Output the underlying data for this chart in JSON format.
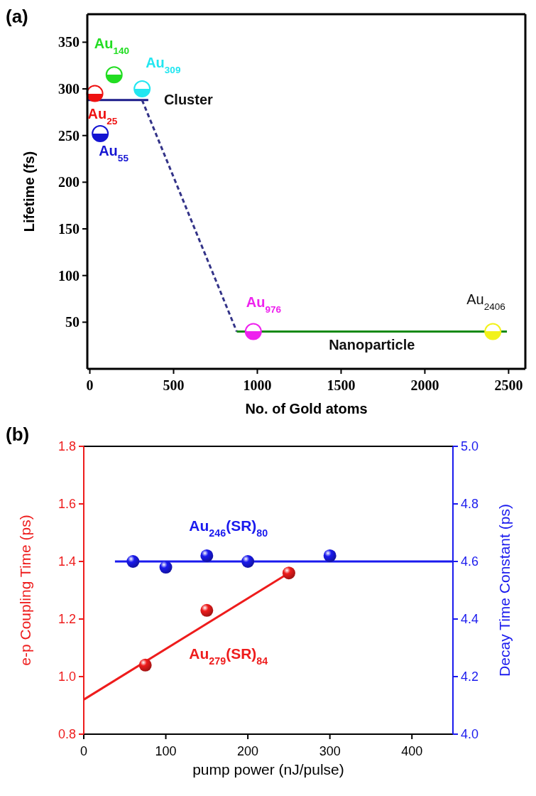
{
  "chart_data": [
    {
      "type": "scatter",
      "title": "(a)",
      "xlabel": "No. of Gold atoms",
      "ylabel": "Lifetime (fs)",
      "xlim": [
        -15,
        2600
      ],
      "ylim": [
        0,
        380
      ],
      "xticks": [
        0,
        500,
        1000,
        1500,
        2000,
        2500
      ],
      "yticks": [
        50,
        100,
        150,
        200,
        250,
        300,
        350
      ],
      "grid": false,
      "series": [
        {
          "name": "Au$_{25}$",
          "color": "#ee1111",
          "marker": "circle",
          "x": [
            30
          ],
          "values": [
            295
          ]
        },
        {
          "name": "Au$_{55}$",
          "color": "#1414d2",
          "marker": "circle",
          "x": [
            62
          ],
          "values": [
            252
          ]
        },
        {
          "name": "Au$_{140}$",
          "color": "#22dd22",
          "marker": "circle",
          "x": [
            145
          ],
          "values": [
            315
          ]
        },
        {
          "name": "Au$_{309}$",
          "color": "#22e6f0",
          "marker": "circle",
          "x": [
            312
          ],
          "values": [
            300
          ]
        },
        {
          "name": "Au$_{976}$",
          "color": "#ee22ee",
          "marker": "circle",
          "x": [
            976
          ],
          "values": [
            40
          ]
        },
        {
          "name": "Au$_{2406}$",
          "color": "#f2f21a",
          "marker": "circle",
          "x": [
            2406
          ],
          "values": [
            40
          ]
        },
        {
          "type": "line",
          "name": "Cluster",
          "color": "#1c1c8a",
          "x": [
            -14,
            349
          ],
          "values": [
            288,
            288
          ]
        },
        {
          "type": "line",
          "color": "#333388",
          "line_style": "dashed",
          "x": [
            312,
            877
          ],
          "values": [
            288,
            40
          ]
        },
        {
          "type": "line",
          "name": "Nanoparticle",
          "color": "#148a14",
          "x": [
            877,
            2490
          ],
          "values": [
            40,
            40
          ]
        }
      ]
    },
    {
      "type": "scatter",
      "title": "(b)",
      "xlabel": "pump power (nJ/pulse)",
      "ylabel": "e-p Coupling Time (ps)",
      "y2label": "Decay Time Constant (ps)",
      "xlim": [
        0,
        450
      ],
      "ylim": [
        0.8,
        1.8
      ],
      "y2lim": [
        4.0,
        5.0
      ],
      "xticks": [
        0,
        100,
        200,
        300,
        400
      ],
      "yticks": [
        0.8,
        {
          "value": 1,
          "label": "1.0"
        },
        1.2,
        1.4,
        1.6,
        1.8
      ],
      "y2ticks": [
        {
          "value": 4,
          "label": "4.0"
        },
        4.2,
        4.4,
        4.6,
        4.8,
        {
          "value": 5,
          "label": "5.0"
        }
      ],
      "grid": false,
      "series": [
        {
          "name": "Au$_{279}$(SR)$_{84}$",
          "color": "#ee1c1c",
          "marker": "circle",
          "x": [
            75,
            150,
            250
          ],
          "values": [
            1.04,
            1.23,
            1.36
          ]
        },
        {
          "type": "line",
          "color": "#ee1c1c",
          "x": [
            0,
            250
          ],
          "values": [
            0.92,
            1.36
          ]
        },
        {
          "name": "Au$_{246}$(SR)$_{80}$",
          "color": "#1a1aee",
          "marker": "circle",
          "axis": "y2",
          "x": [
            60,
            100,
            150,
            200,
            300
          ],
          "values": [
            4.6,
            4.58,
            4.62,
            4.6,
            4.62
          ]
        },
        {
          "type": "line",
          "color": "#1a1aee",
          "axis": "y2",
          "x": [
            38,
            450
          ],
          "values": [
            4.6,
            4.6
          ]
        }
      ]
    }
  ]
}
